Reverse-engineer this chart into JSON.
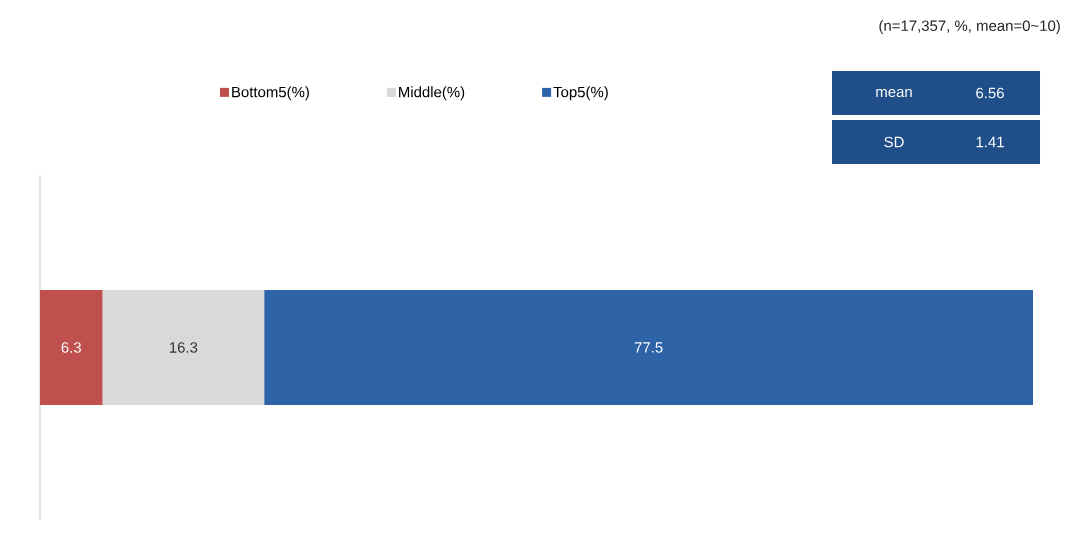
{
  "chart_data": {
    "type": "bar",
    "orientation": "horizontal",
    "stacked": true,
    "categories": [
      null
    ],
    "series": [
      {
        "name": "Bottom5(%)",
        "color": "#c0504d",
        "values": [
          6.3
        ]
      },
      {
        "name": "Middle(%)",
        "color": "#d9d9d9",
        "values": [
          16.3
        ]
      },
      {
        "name": "Top5(%)",
        "color": "#2e63a8",
        "values": [
          77.5
        ]
      }
    ],
    "data_labels": true,
    "legend": "top",
    "annotations": [
      "(n=17,357,  %,  mean=0~10)",
      "mean",
      "6.56",
      "SD",
      "1.41"
    ]
  }
}
